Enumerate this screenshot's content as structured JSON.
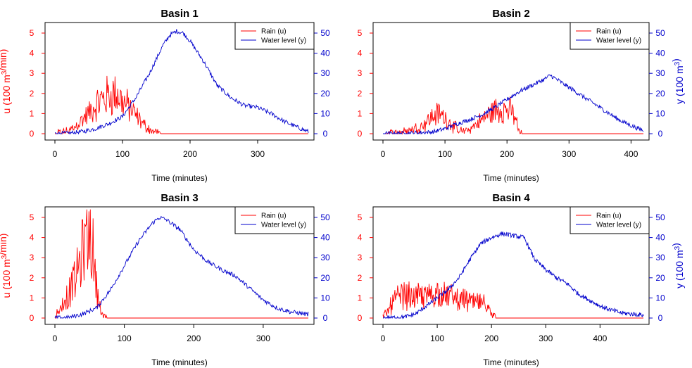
{
  "colors": {
    "rain": "#ff0000",
    "water": "#0000cc",
    "axis": "#000000"
  },
  "chart_data": [
    {
      "type": "line",
      "title": "Basin 1",
      "xlabel": "Time (minutes)",
      "ylabel_left": "u (100 m³/min)",
      "ylabel_right": "",
      "xlim": [
        0,
        375
      ],
      "xticks": [
        0,
        100,
        200,
        300
      ],
      "ylim_left": [
        0,
        5.5
      ],
      "yticks_left": [
        0,
        1,
        2,
        3,
        4,
        5
      ],
      "ylim_right": [
        0,
        55
      ],
      "yticks_right": [
        0,
        10,
        20,
        30,
        40,
        50
      ],
      "legend_placement": "top-right",
      "legend": [
        "Rain (u)",
        "Water level (y)"
      ],
      "series": [
        {
          "name": "Rain (u)",
          "axis": "left",
          "color": "#ff0000",
          "x": [
            0,
            10,
            20,
            30,
            40,
            50,
            60,
            70,
            80,
            90,
            100,
            110,
            120,
            130,
            140,
            150,
            160,
            375
          ],
          "y": [
            0,
            0.05,
            0.15,
            0.35,
            0.7,
            1.0,
            1.4,
            1.7,
            1.9,
            2.0,
            1.6,
            1.3,
            0.9,
            0.5,
            0.2,
            0.05,
            0,
            0
          ]
        },
        {
          "name": "Water level (y)",
          "axis": "right",
          "color": "#0000cc",
          "x": [
            0,
            20,
            40,
            60,
            80,
            100,
            120,
            140,
            160,
            170,
            180,
            190,
            200,
            220,
            240,
            260,
            280,
            300,
            320,
            340,
            360,
            375
          ],
          "y": [
            0,
            0.2,
            1,
            2.5,
            5,
            8.5,
            18,
            30,
            44,
            49,
            51,
            50,
            46,
            36,
            24,
            18,
            14,
            13,
            10,
            6,
            3,
            1
          ]
        }
      ]
    },
    {
      "type": "line",
      "title": "Basin 2",
      "xlabel": "Time (minutes)",
      "ylabel_left": "",
      "ylabel_right": "y (100 m³)",
      "xlim": [
        0,
        420
      ],
      "xticks": [
        0,
        100,
        200,
        300,
        400
      ],
      "ylim_left": [
        0,
        5.5
      ],
      "yticks_left": [
        0,
        1,
        2,
        3,
        4,
        5
      ],
      "ylim_right": [
        0,
        55
      ],
      "yticks_right": [
        0,
        10,
        20,
        30,
        40,
        50
      ],
      "legend_placement": "top-right",
      "legend": [
        "Rain (u)",
        "Water level (y)"
      ],
      "series": [
        {
          "name": "Rain (u)",
          "axis": "left",
          "color": "#ff0000",
          "x": [
            0,
            20,
            40,
            60,
            70,
            80,
            90,
            100,
            110,
            120,
            130,
            140,
            150,
            160,
            170,
            180,
            190,
            200,
            210,
            215,
            220,
            225,
            420
          ],
          "y": [
            0,
            0.05,
            0.15,
            0.35,
            0.6,
            0.85,
            1.0,
            0.8,
            0.5,
            0.2,
            0.1,
            0.2,
            0.45,
            0.7,
            0.95,
            1.15,
            1.25,
            1.2,
            1.0,
            0.6,
            0.1,
            0,
            0
          ]
        },
        {
          "name": "Water level (y)",
          "axis": "right",
          "color": "#0000cc",
          "x": [
            0,
            40,
            80,
            100,
            120,
            140,
            160,
            180,
            200,
            220,
            240,
            260,
            270,
            280,
            300,
            320,
            340,
            360,
            380,
            400,
            420
          ],
          "y": [
            0,
            0.2,
            0.8,
            2.5,
            5,
            7,
            9.5,
            13,
            17,
            21,
            24,
            27,
            29,
            27,
            23,
            19,
            15,
            11,
            7,
            4,
            1.5
          ]
        }
      ]
    },
    {
      "type": "line",
      "title": "Basin 3",
      "xlabel": "Time (minutes)",
      "ylabel_left": "u (100 m³/min)",
      "ylabel_right": "",
      "xlim": [
        0,
        365
      ],
      "xticks": [
        0,
        100,
        200,
        300
      ],
      "ylim_left": [
        0,
        5.5
      ],
      "yticks_left": [
        0,
        1,
        2,
        3,
        4,
        5
      ],
      "ylim_right": [
        0,
        55
      ],
      "yticks_right": [
        0,
        10,
        20,
        30,
        40,
        50
      ],
      "legend_placement": "top-right",
      "legend": [
        "Rain (u)",
        "Water level (y)"
      ],
      "series": [
        {
          "name": "Rain (u)",
          "axis": "left",
          "color": "#ff0000",
          "x": [
            0,
            10,
            20,
            30,
            35,
            40,
            45,
            50,
            55,
            60,
            65,
            70,
            75,
            365
          ],
          "y": [
            0.1,
            0.6,
            1.2,
            2.0,
            2.6,
            3.3,
            4.0,
            4.3,
            3.2,
            1.6,
            0.6,
            0.15,
            0,
            0
          ]
        },
        {
          "name": "Water level (y)",
          "axis": "right",
          "color": "#0000cc",
          "x": [
            0,
            20,
            40,
            60,
            80,
            100,
            120,
            140,
            150,
            160,
            180,
            200,
            220,
            240,
            260,
            280,
            300,
            320,
            340,
            360,
            365
          ],
          "y": [
            0,
            0.3,
            2,
            5,
            14,
            26,
            38,
            47,
            50,
            49,
            44,
            34,
            28,
            24,
            21,
            15,
            9,
            5,
            3,
            2,
            2
          ]
        }
      ]
    },
    {
      "type": "line",
      "title": "Basin 4",
      "xlabel": "Time (minutes)",
      "ylabel_left": "",
      "ylabel_right": "y (100 m³)",
      "xlim": [
        0,
        480
      ],
      "xticks": [
        0,
        100,
        200,
        300,
        400
      ],
      "ylim_left": [
        0,
        5.5
      ],
      "yticks_left": [
        0,
        1,
        2,
        3,
        4,
        5
      ],
      "ylim_right": [
        0,
        55
      ],
      "yticks_right": [
        0,
        10,
        20,
        30,
        40,
        50
      ],
      "legend_placement": "top-right",
      "legend": [
        "Rain (u)",
        "Water level (y)"
      ],
      "series": [
        {
          "name": "Rain (u)",
          "axis": "left",
          "color": "#ff0000",
          "x": [
            0,
            10,
            20,
            40,
            60,
            80,
            100,
            120,
            140,
            160,
            180,
            190,
            200,
            210,
            480
          ],
          "y": [
            0.05,
            0.5,
            0.9,
            1.15,
            1.05,
            1.1,
            1.25,
            1.1,
            0.95,
            0.85,
            0.75,
            0.6,
            0.1,
            0,
            0
          ]
        },
        {
          "name": "Water level (y)",
          "axis": "right",
          "color": "#0000cc",
          "x": [
            0,
            40,
            60,
            80,
            100,
            120,
            140,
            160,
            180,
            200,
            220,
            240,
            260,
            280,
            300,
            320,
            340,
            360,
            380,
            400,
            420,
            440,
            460,
            480
          ],
          "y": [
            0,
            0.5,
            2,
            6,
            10,
            14,
            20,
            29,
            37,
            40,
            42,
            41,
            40,
            29,
            24,
            20,
            17,
            12,
            9,
            6,
            4,
            2.5,
            2,
            1.5
          ]
        }
      ]
    }
  ]
}
